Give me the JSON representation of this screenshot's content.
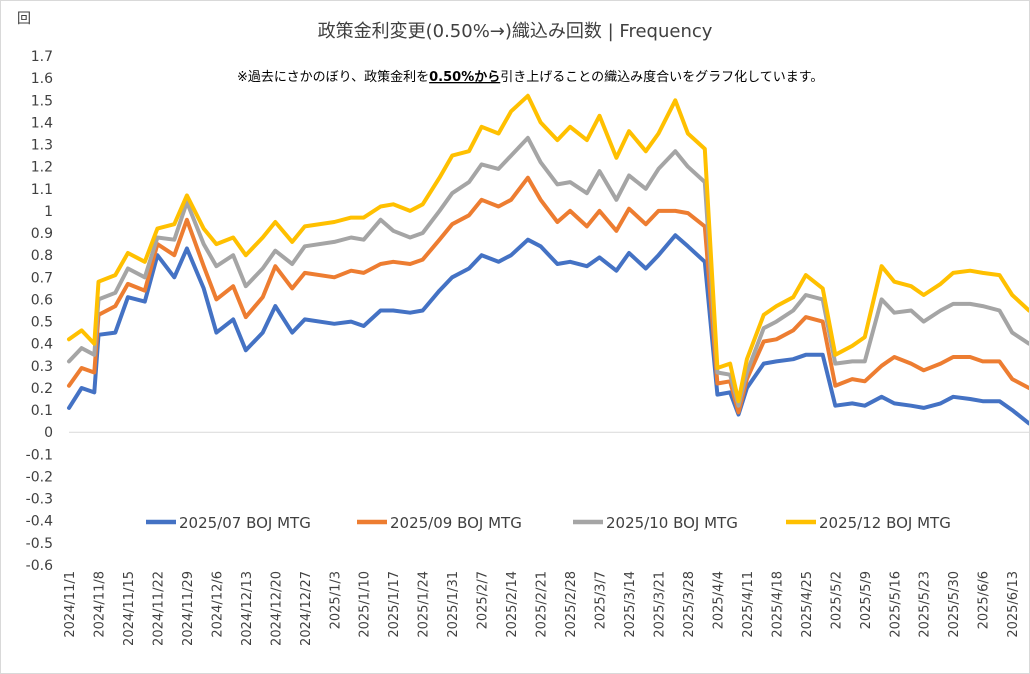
{
  "chart_data": {
    "type": "line",
    "title": "政策金利変更(0.50%→)織込み回数 | Frequency",
    "ylabel": "回",
    "annotation": {
      "before": "※過去にさかのぼり、政策金利を",
      "emph": "0.50%から",
      "after": "引き上げることの織込み度合いをグラフ化しています。"
    },
    "ylim": [
      -0.6,
      1.7
    ],
    "ystep": 0.1,
    "yticks": [
      "1.7",
      "1.6",
      "1.5",
      "1.4",
      "1.3",
      "1.2",
      "1.1",
      "1",
      "0.9",
      "0.8",
      "0.7",
      "0.6",
      "0.5",
      "0.4",
      "0.3",
      "0.2",
      "0.1",
      "0",
      "-0.1",
      "-0.2",
      "-0.3",
      "-0.4",
      "-0.5",
      "-0.6"
    ],
    "xlim": [
      "2024-11-01",
      "2025-06-17"
    ],
    "xticks": [
      "2024/11/1",
      "2024/11/8",
      "2024/11/15",
      "2024/11/22",
      "2024/11/29",
      "2024/12/6",
      "2024/12/13",
      "2024/12/20",
      "2024/12/27",
      "2025/1/3",
      "2025/1/10",
      "2025/1/17",
      "2025/1/24",
      "2025/1/31",
      "2025/2/7",
      "2025/2/14",
      "2025/2/21",
      "2025/2/28",
      "2025/3/7",
      "2025/3/14",
      "2025/3/21",
      "2025/3/28",
      "2025/4/4",
      "2025/4/11",
      "2025/4/18",
      "2025/4/25",
      "2025/5/2",
      "2025/5/9",
      "2025/5/16",
      "2025/5/23",
      "2025/5/30",
      "2025/6/6",
      "2025/6/13"
    ],
    "grid": false,
    "legend_position": "bottom-center",
    "x": [
      "2024-11-01",
      "2024-11-04",
      "2024-11-07",
      "2024-11-08",
      "2024-11-12",
      "2024-11-15",
      "2024-11-19",
      "2024-11-22",
      "2024-11-26",
      "2024-11-29",
      "2024-12-03",
      "2024-12-06",
      "2024-12-10",
      "2024-12-13",
      "2024-12-17",
      "2024-12-20",
      "2024-12-24",
      "2024-12-27",
      "2025-01-03",
      "2025-01-07",
      "2025-01-10",
      "2025-01-14",
      "2025-01-17",
      "2025-01-21",
      "2025-01-24",
      "2025-01-28",
      "2025-01-31",
      "2025-02-04",
      "2025-02-07",
      "2025-02-11",
      "2025-02-14",
      "2025-02-18",
      "2025-02-21",
      "2025-02-25",
      "2025-02-28",
      "2025-03-04",
      "2025-03-07",
      "2025-03-11",
      "2025-03-14",
      "2025-03-18",
      "2025-03-21",
      "2025-03-25",
      "2025-03-28",
      "2025-04-01",
      "2025-04-04",
      "2025-04-07",
      "2025-04-09",
      "2025-04-11",
      "2025-04-15",
      "2025-04-18",
      "2025-04-22",
      "2025-04-25",
      "2025-04-29",
      "2025-05-02",
      "2025-05-06",
      "2025-05-09",
      "2025-05-13",
      "2025-05-16",
      "2025-05-20",
      "2025-05-23",
      "2025-05-27",
      "2025-05-30",
      "2025-06-03",
      "2025-06-06",
      "2025-06-10",
      "2025-06-13",
      "2025-06-17"
    ],
    "series": [
      {
        "name": "2025/07 BOJ MTG",
        "color": "#4472C4",
        "values": [
          0.11,
          0.2,
          0.18,
          0.44,
          0.45,
          0.61,
          0.59,
          0.8,
          0.7,
          0.83,
          0.65,
          0.45,
          0.51,
          0.37,
          0.45,
          0.57,
          0.45,
          0.51,
          0.49,
          0.5,
          0.48,
          0.55,
          0.55,
          0.54,
          0.55,
          0.64,
          0.7,
          0.74,
          0.8,
          0.77,
          0.8,
          0.87,
          0.84,
          0.76,
          0.77,
          0.75,
          0.79,
          0.73,
          0.81,
          0.74,
          0.8,
          0.89,
          0.84,
          0.77,
          0.17,
          0.18,
          0.08,
          0.2,
          0.31,
          0.32,
          0.33,
          0.35,
          0.35,
          0.12,
          0.13,
          0.12,
          0.16,
          0.13,
          0.12,
          0.11,
          0.13,
          0.16,
          0.15,
          0.14,
          0.14,
          0.1,
          0.04
        ]
      },
      {
        "name": "2025/09 BOJ MTG",
        "color": "#ED7D31",
        "values": [
          0.21,
          0.29,
          0.27,
          0.53,
          0.57,
          0.67,
          0.64,
          0.85,
          0.8,
          0.96,
          0.75,
          0.6,
          0.66,
          0.52,
          0.61,
          0.75,
          0.65,
          0.72,
          0.7,
          0.73,
          0.72,
          0.76,
          0.77,
          0.76,
          0.78,
          0.87,
          0.94,
          0.98,
          1.05,
          1.02,
          1.05,
          1.15,
          1.05,
          0.95,
          1.0,
          0.93,
          1.0,
          0.91,
          1.01,
          0.94,
          1.0,
          1.0,
          0.99,
          0.93,
          0.22,
          0.23,
          0.09,
          0.24,
          0.41,
          0.42,
          0.46,
          0.52,
          0.5,
          0.21,
          0.24,
          0.23,
          0.3,
          0.34,
          0.31,
          0.28,
          0.31,
          0.34,
          0.34,
          0.32,
          0.32,
          0.24,
          0.2
        ]
      },
      {
        "name": "2025/10 BOJ MTG",
        "color": "#A5A5A5",
        "values": [
          0.32,
          0.38,
          0.35,
          0.6,
          0.63,
          0.74,
          0.7,
          0.88,
          0.87,
          1.04,
          0.85,
          0.75,
          0.8,
          0.66,
          0.74,
          0.82,
          0.76,
          0.84,
          0.86,
          0.88,
          0.87,
          0.96,
          0.91,
          0.88,
          0.9,
          1.0,
          1.08,
          1.13,
          1.21,
          1.19,
          1.25,
          1.33,
          1.22,
          1.12,
          1.13,
          1.08,
          1.18,
          1.05,
          1.16,
          1.1,
          1.19,
          1.27,
          1.2,
          1.13,
          0.27,
          0.26,
          0.12,
          0.27,
          0.47,
          0.5,
          0.55,
          0.62,
          0.6,
          0.31,
          0.32,
          0.32,
          0.6,
          0.54,
          0.55,
          0.5,
          0.55,
          0.58,
          0.58,
          0.57,
          0.55,
          0.45,
          0.4
        ]
      },
      {
        "name": "2025/12 BOJ MTG",
        "color": "#FFC000",
        "values": [
          0.42,
          0.46,
          0.4,
          0.68,
          0.71,
          0.81,
          0.77,
          0.92,
          0.94,
          1.07,
          0.92,
          0.85,
          0.88,
          0.8,
          0.88,
          0.95,
          0.86,
          0.93,
          0.95,
          0.97,
          0.97,
          1.02,
          1.03,
          1.0,
          1.03,
          1.15,
          1.25,
          1.27,
          1.38,
          1.35,
          1.45,
          1.52,
          1.4,
          1.32,
          1.38,
          1.32,
          1.43,
          1.24,
          1.36,
          1.27,
          1.35,
          1.5,
          1.35,
          1.28,
          0.29,
          0.31,
          0.14,
          0.33,
          0.53,
          0.57,
          0.61,
          0.71,
          0.65,
          0.35,
          0.39,
          0.43,
          0.75,
          0.68,
          0.66,
          0.62,
          0.67,
          0.72,
          0.73,
          0.72,
          0.71,
          0.62,
          0.55
        ]
      }
    ]
  }
}
